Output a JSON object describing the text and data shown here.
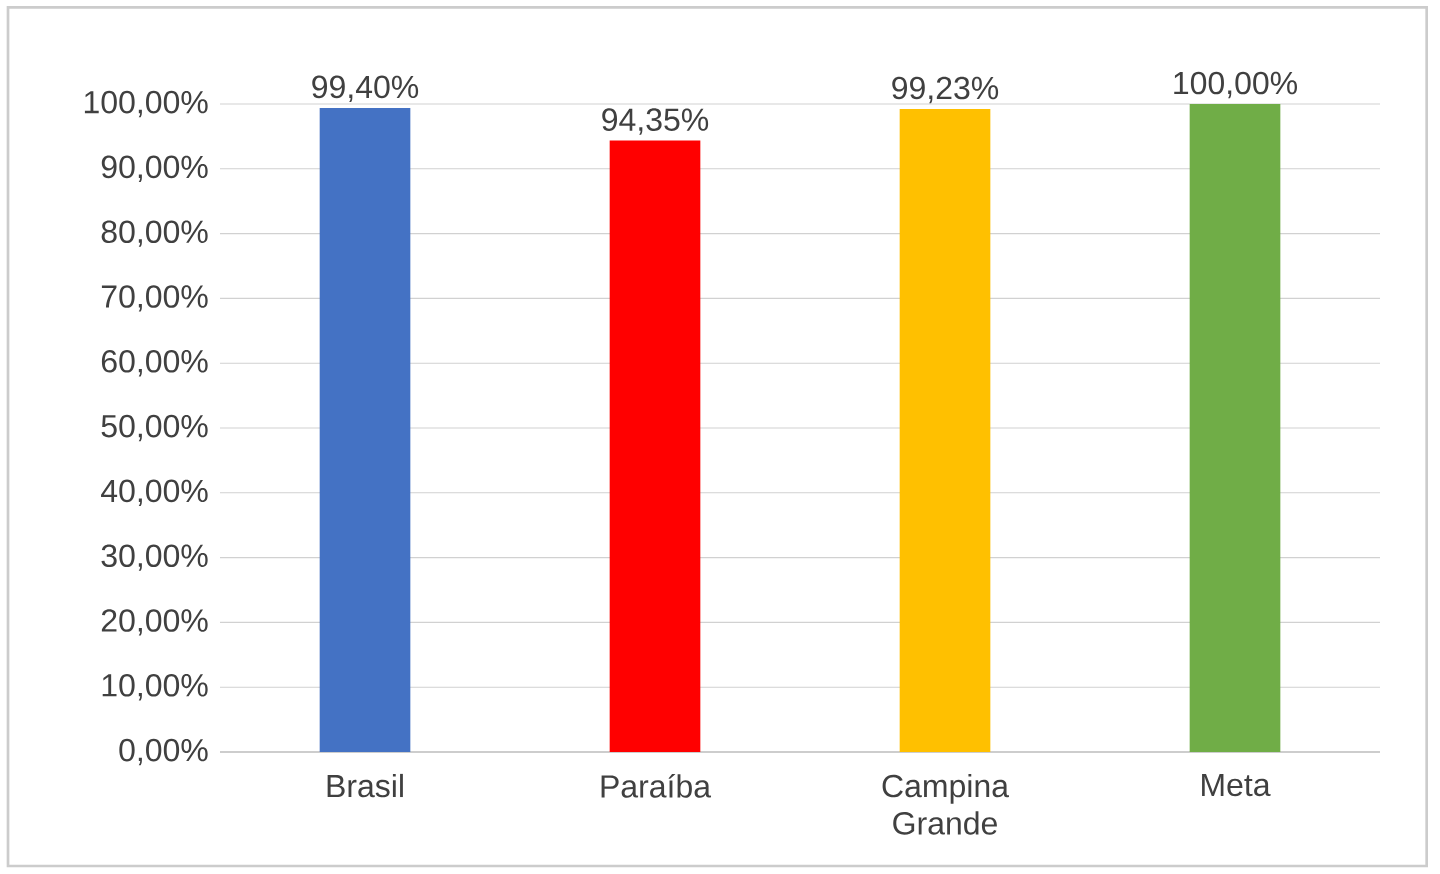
{
  "chart_data": {
    "type": "bar",
    "categories": [
      "Brasil",
      "Paraíba",
      "Campina Grande",
      "Meta"
    ],
    "values": [
      99.4,
      94.35,
      99.23,
      100.0
    ],
    "colors": [
      "#4472c4",
      "#ff0000",
      "#ffc000",
      "#70ad47"
    ],
    "value_labels": [
      "99,40%",
      "94,35%",
      "99,23%",
      "100,00%"
    ],
    "ylim": [
      0,
      100
    ],
    "yticks": [
      {
        "value": 0,
        "label": "0,00%"
      },
      {
        "value": 10,
        "label": "10,00%"
      },
      {
        "value": 20,
        "label": "20,00%"
      },
      {
        "value": 30,
        "label": "30,00%"
      },
      {
        "value": 40,
        "label": "40,00%"
      },
      {
        "value": 50,
        "label": "50,00%"
      },
      {
        "value": 60,
        "label": "60,00%"
      },
      {
        "value": 70,
        "label": "70,00%"
      },
      {
        "value": 80,
        "label": "80,00%"
      },
      {
        "value": 90,
        "label": "90,00%"
      },
      {
        "value": 100,
        "label": "100,00%"
      }
    ],
    "grid": "y"
  }
}
